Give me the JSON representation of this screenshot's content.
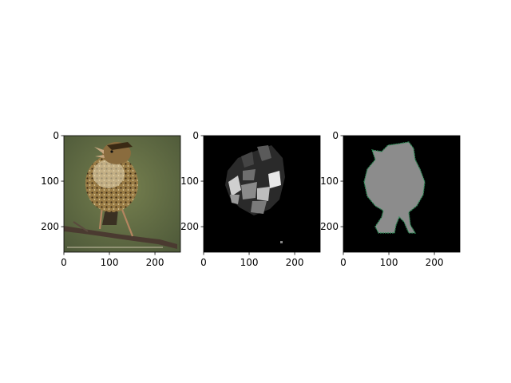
{
  "chart_data": [
    {
      "type": "image",
      "content": "photo",
      "xlim": [
        0,
        256
      ],
      "ylim": [
        256,
        0
      ],
      "x_ticks": [
        0,
        100,
        200
      ],
      "y_ticks": [
        0,
        100,
        200
      ],
      "title": "",
      "xlabel": "",
      "ylabel": ""
    },
    {
      "type": "image",
      "content": "segmentation-regions",
      "xlim": [
        0,
        256
      ],
      "ylim": [
        256,
        0
      ],
      "x_ticks": [
        0,
        100,
        200
      ],
      "y_ticks": [
        0,
        100,
        200
      ],
      "title": "",
      "xlabel": "",
      "ylabel": ""
    },
    {
      "type": "image",
      "content": "mask-with-contour",
      "xlim": [
        0,
        256
      ],
      "ylim": [
        256,
        0
      ],
      "x_ticks": [
        0,
        100,
        200
      ],
      "y_ticks": [
        0,
        100,
        200
      ],
      "title": "",
      "xlabel": "",
      "ylabel": ""
    }
  ],
  "colors": {
    "photo_background": "#66704a",
    "bird_body": "#7c6538",
    "mask_fill": "#8c8c8c",
    "contour": "#2e8b57",
    "seg_background": "#000000"
  }
}
